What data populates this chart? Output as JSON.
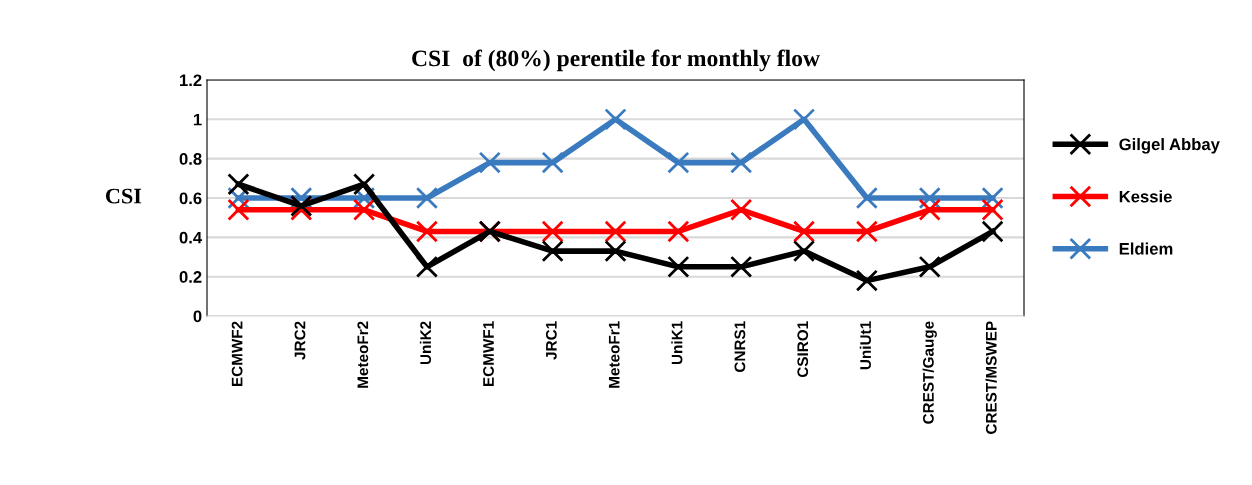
{
  "chart_data": {
    "type": "line",
    "title": "CSI  of (80%) perentile for monthly flow",
    "ylabel": "CSI",
    "categories": [
      "ECMWF2",
      "JRC2",
      "MeteoFr2",
      "UniK2",
      "ECMWF1",
      "JRC1",
      "MeteoFr1",
      "UniK1",
      "CNRS1",
      "CSIRO1",
      "UniUt1",
      "CREST/Gauge",
      "CREST/MSWEP"
    ],
    "series": [
      {
        "name": "Gilgel Abbay",
        "color": "#000000",
        "values": [
          0.67,
          0.56,
          0.67,
          0.25,
          0.43,
          0.33,
          0.33,
          0.25,
          0.25,
          0.33,
          0.18,
          0.25,
          0.43
        ]
      },
      {
        "name": "Kessie",
        "color": "#ff0000",
        "values": [
          0.54,
          0.54,
          0.54,
          0.43,
          0.43,
          0.43,
          0.43,
          0.43,
          0.54,
          0.43,
          0.43,
          0.54,
          0.54
        ]
      },
      {
        "name": "Eldiem",
        "color": "#3a7abf",
        "values": [
          0.6,
          0.6,
          0.6,
          0.6,
          0.78,
          0.78,
          1,
          0.78,
          0.78,
          1,
          0.6,
          0.6,
          0.6
        ]
      }
    ],
    "ylim": [
      0,
      1.2
    ],
    "yticks": [
      0,
      0.2,
      0.4,
      0.6,
      0.8,
      1,
      1.2
    ],
    "grid": "y",
    "legend": "right",
    "marker": "cross",
    "line_style": "solid"
  }
}
